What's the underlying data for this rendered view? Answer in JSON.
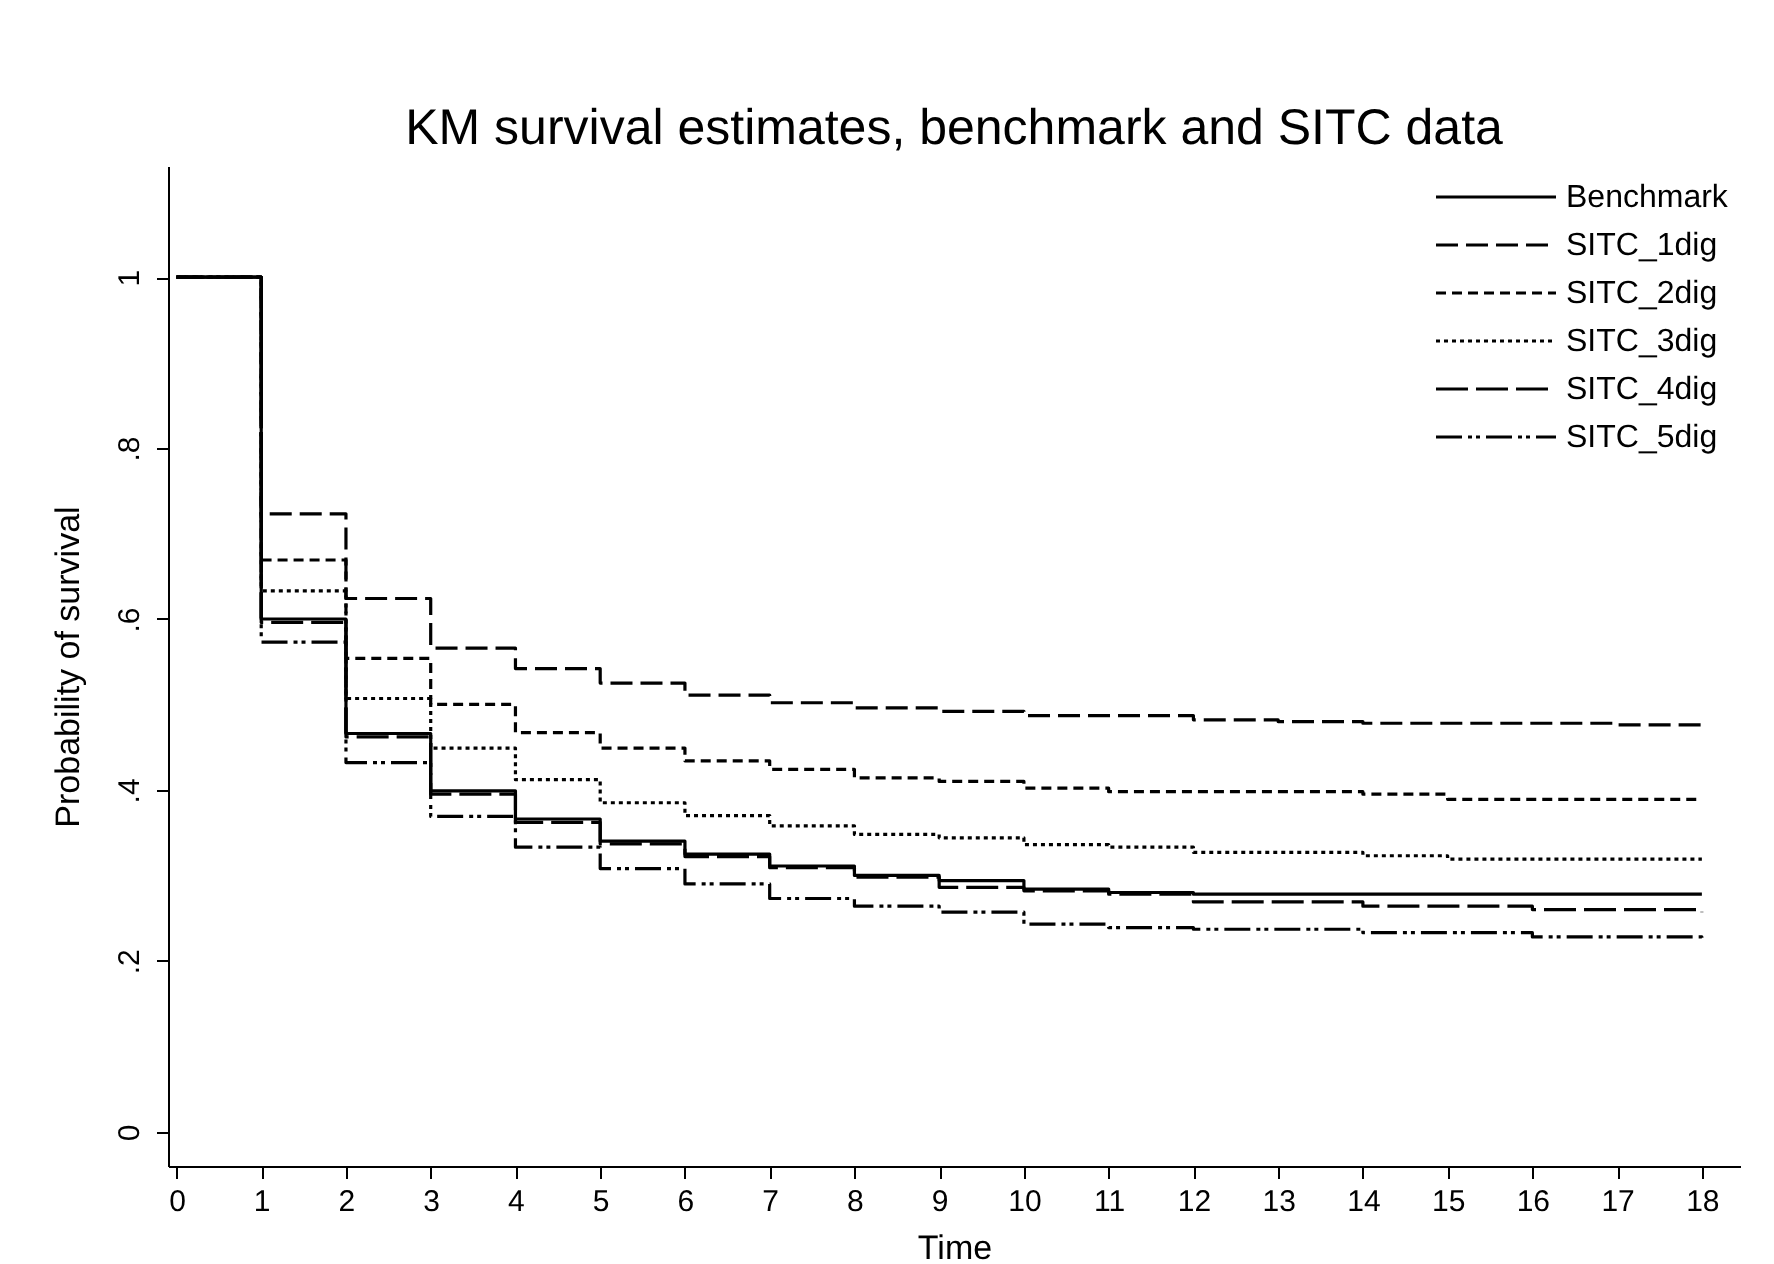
{
  "chart_data": {
    "type": "step",
    "title": "KM survival estimates, benchmark and SITC data",
    "xlabel": "Time",
    "ylabel": "Probability of survival",
    "x": [
      0,
      1,
      2,
      3,
      4,
      5,
      6,
      7,
      8,
      9,
      10,
      11,
      12,
      13,
      14,
      15,
      16,
      17,
      18
    ],
    "xlim": [
      -0.1,
      18.45
    ],
    "xticks": [
      0,
      1,
      2,
      3,
      4,
      5,
      6,
      7,
      8,
      9,
      10,
      11,
      12,
      13,
      14,
      15,
      16,
      17,
      18
    ],
    "ylim": [
      -0.04,
      1.13
    ],
    "yticks": [
      0,
      {
        "value": 0.2,
        "label": ".2"
      },
      {
        "value": 0.4,
        "label": ".4"
      },
      {
        "value": 0.6,
        "label": ".6"
      },
      {
        "value": 0.8,
        "label": ".8"
      },
      1
    ],
    "grid": false,
    "legend": "top right",
    "marker": "none",
    "series": [
      {
        "name": "Benchmark",
        "color": "#000000",
        "line_style": "solid",
        "values": [
          1,
          0.6,
          0.466,
          0.399,
          0.366,
          0.34,
          0.325,
          0.311,
          0.3,
          0.294,
          0.284,
          0.28,
          0.278,
          0.278,
          0.278,
          0.278,
          0.278,
          0.278,
          0.278
        ]
      },
      {
        "name": "SITC_1dig",
        "color": "#000000",
        "line_style": "dashed",
        "values": [
          1,
          0.723,
          0.624,
          0.566,
          0.542,
          0.525,
          0.511,
          0.502,
          0.496,
          0.492,
          0.487,
          0.487,
          0.482,
          0.48,
          0.478,
          0.478,
          0.478,
          0.476,
          0.476
        ]
      },
      {
        "name": "SITC_2dig",
        "color": "#000000",
        "line_style": "dashed",
        "values": [
          1,
          0.669,
          0.554,
          0.5,
          0.467,
          0.449,
          0.434,
          0.424,
          0.414,
          0.41,
          0.402,
          0.398,
          0.398,
          0.398,
          0.395,
          0.389,
          0.389,
          0.389,
          0.389
        ]
      },
      {
        "name": "SITC_3dig",
        "color": "#000000",
        "line_style": "dotted",
        "values": [
          1,
          0.633,
          0.507,
          0.449,
          0.412,
          0.385,
          0.37,
          0.358,
          0.348,
          0.344,
          0.336,
          0.333,
          0.327,
          0.327,
          0.323,
          0.319,
          0.319,
          0.319,
          0.319
        ]
      },
      {
        "name": "SITC_4dig",
        "color": "#000000",
        "line_style": "dashed",
        "values": [
          1,
          0.596,
          0.462,
          0.395,
          0.362,
          0.337,
          0.322,
          0.309,
          0.298,
          0.286,
          0.282,
          0.278,
          0.269,
          0.269,
          0.264,
          0.264,
          0.26,
          0.26,
          0.257
        ]
      },
      {
        "name": "SITC_5dig",
        "color": "#000000",
        "line_style": "dashed",
        "values": [
          1,
          0.573,
          0.432,
          0.369,
          0.333,
          0.308,
          0.29,
          0.273,
          0.264,
          0.257,
          0.243,
          0.239,
          0.237,
          0.237,
          0.233,
          0.233,
          0.228,
          0.228,
          0.224
        ]
      }
    ]
  }
}
